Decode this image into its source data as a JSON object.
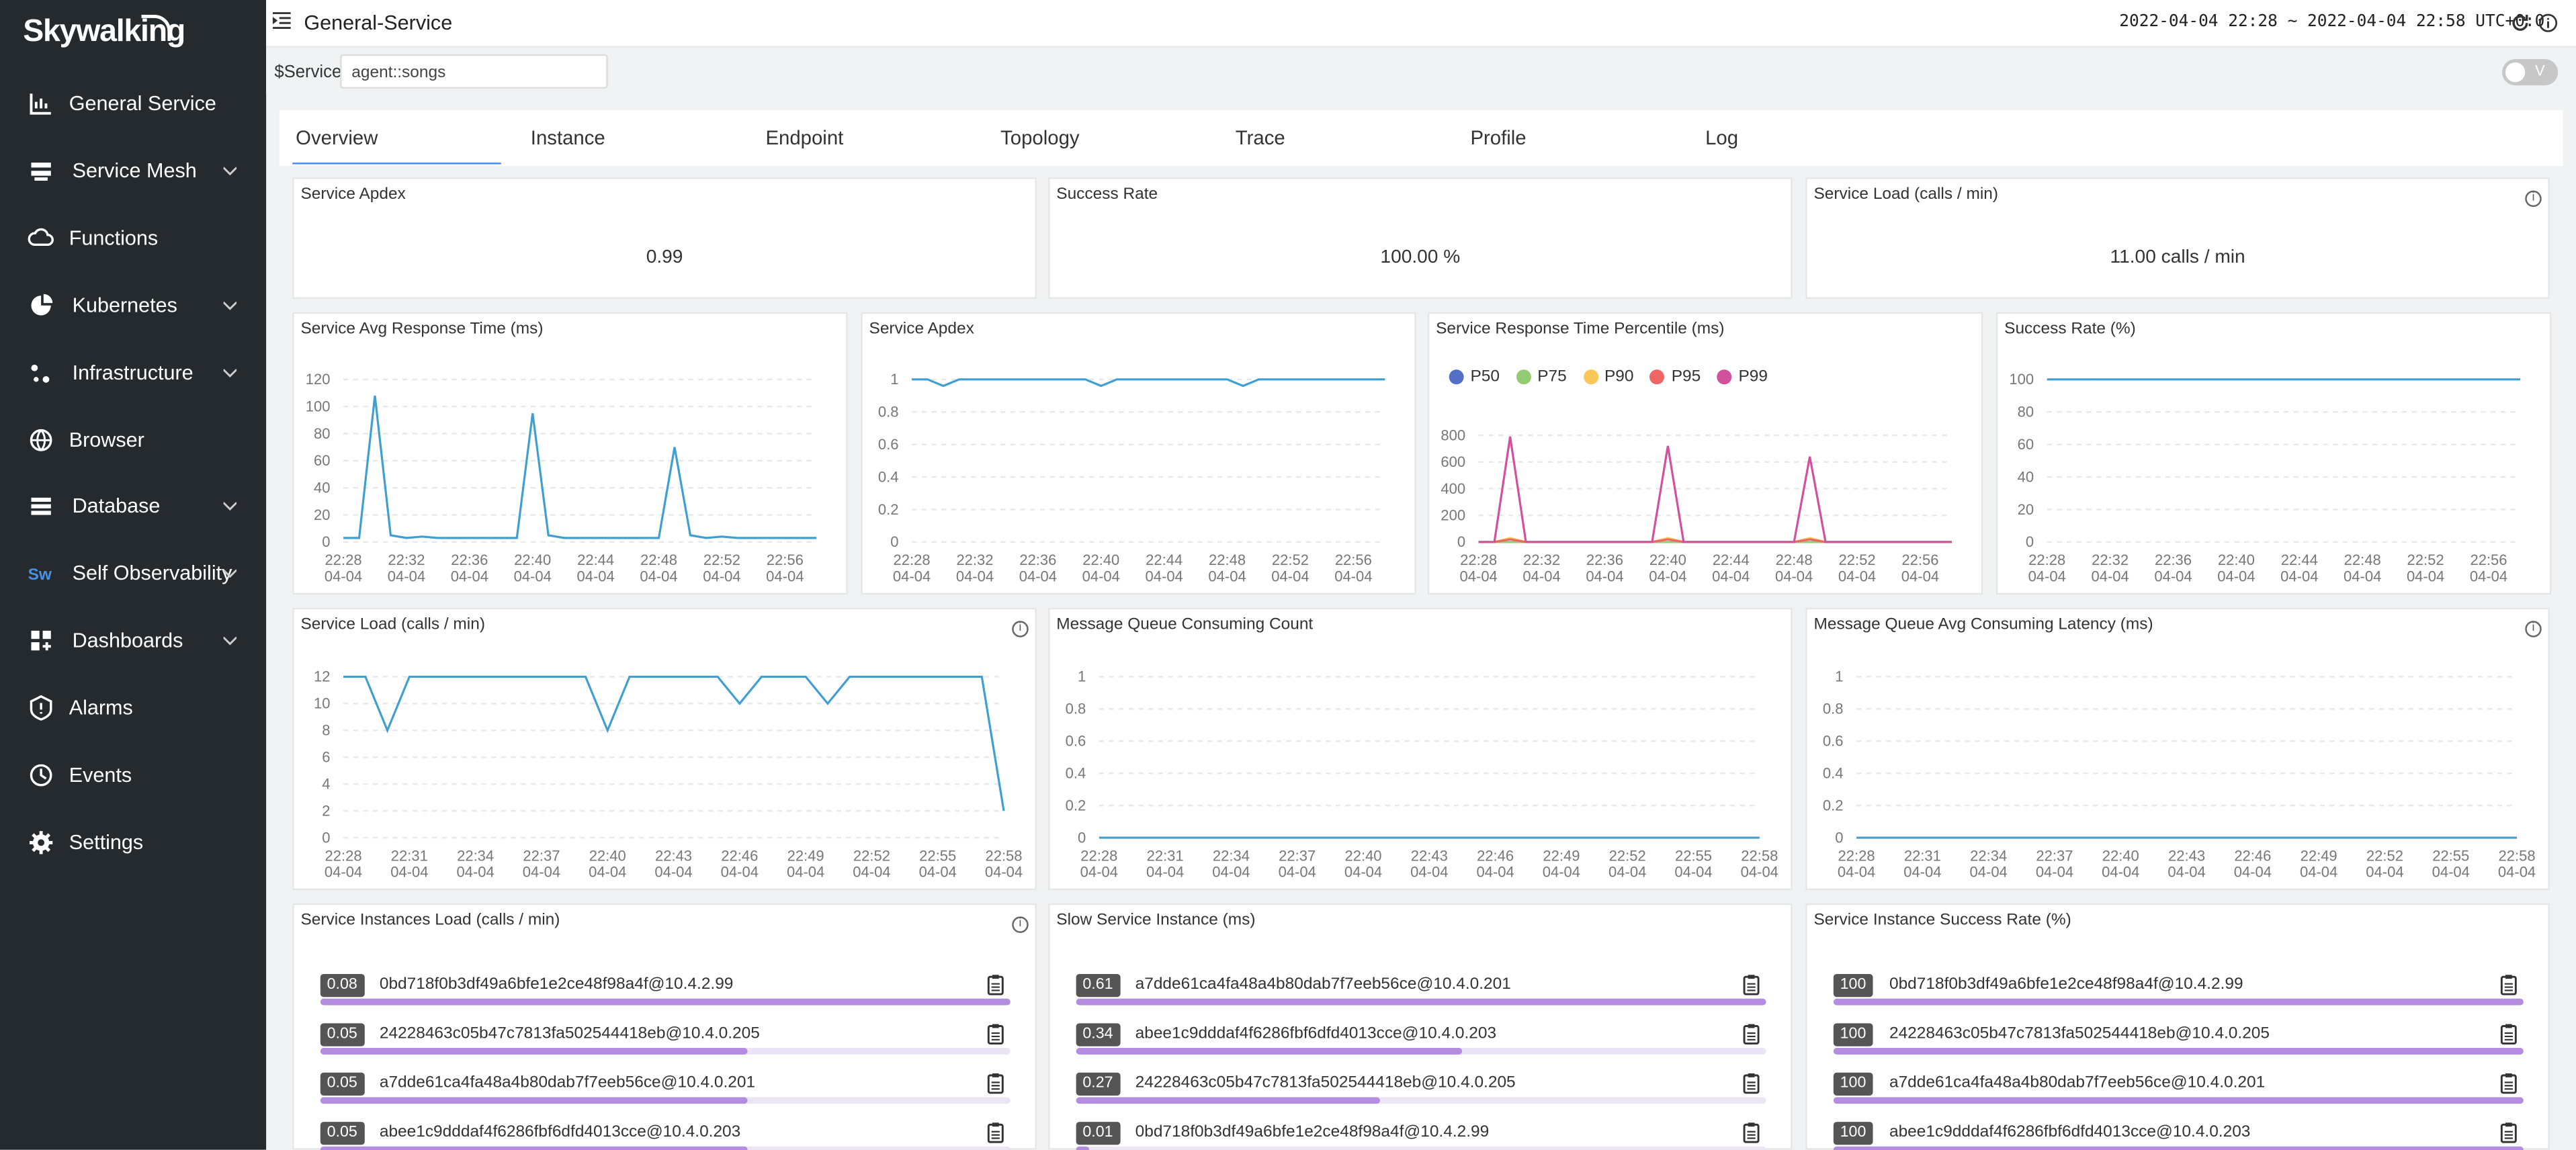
{
  "app": {
    "logo": "Skywalking"
  },
  "sidebar": {
    "items": [
      {
        "label": "General Service",
        "icon": "chart-icon",
        "chevron": false
      },
      {
        "label": "Service Mesh",
        "icon": "mesh-icon",
        "chevron": true
      },
      {
        "label": "Functions",
        "icon": "cloud-icon",
        "chevron": false
      },
      {
        "label": "Kubernetes",
        "icon": "pie-icon",
        "chevron": true
      },
      {
        "label": "Infrastructure",
        "icon": "nodes-icon",
        "chevron": true
      },
      {
        "label": "Browser",
        "icon": "globe-icon",
        "chevron": false
      },
      {
        "label": "Database",
        "icon": "database-icon",
        "chevron": true
      },
      {
        "label": "Self Observability",
        "icon": "sw-icon",
        "chevron": true
      },
      {
        "label": "Dashboards",
        "icon": "dashboard-icon",
        "chevron": true
      },
      {
        "label": "Alarms",
        "icon": "alarm-icon",
        "chevron": false
      },
      {
        "label": "Events",
        "icon": "events-icon",
        "chevron": false
      },
      {
        "label": "Settings",
        "icon": "gear-icon",
        "chevron": false
      }
    ]
  },
  "header": {
    "title": "General-Service",
    "time_range": "2022-04-04 22:28 ~ 2022-04-04 22:58",
    "timezone": "UTC+0:0"
  },
  "filter": {
    "label": "$Service",
    "value": "agent::songs",
    "toggle_label": "V"
  },
  "tabs": [
    "Overview",
    "Instance",
    "Endpoint",
    "Topology",
    "Trace",
    "Profile",
    "Log"
  ],
  "cards": [
    {
      "title": "Service Apdex",
      "value": "0.99"
    },
    {
      "title": "Success Rate",
      "value": "100.00 %"
    },
    {
      "title": "Service Load (calls / min)",
      "value": "11.00 calls / min"
    }
  ],
  "chart_data": [
    {
      "type": "line",
      "title": "Service Avg Response Time (ms)",
      "x": [
        "22:28",
        "22:29",
        "22:30",
        "22:31",
        "22:32",
        "22:33",
        "22:34",
        "22:35",
        "22:36",
        "22:37",
        "22:38",
        "22:39",
        "22:40",
        "22:41",
        "22:42",
        "22:43",
        "22:44",
        "22:45",
        "22:46",
        "22:47",
        "22:48",
        "22:49",
        "22:50",
        "22:51",
        "22:52",
        "22:53",
        "22:54",
        "22:55",
        "22:56",
        "22:57",
        "22:58"
      ],
      "x_date": "04-04",
      "series": [
        {
          "values": [
            3,
            3,
            108,
            5,
            3,
            4,
            3,
            3,
            3,
            3,
            3,
            3,
            95,
            5,
            3,
            3,
            3,
            3,
            3,
            3,
            3,
            70,
            5,
            3,
            4,
            3,
            3,
            3,
            3,
            3,
            3
          ]
        }
      ],
      "yticks": [
        0,
        20,
        40,
        60,
        80,
        100,
        120
      ],
      "ylim": [
        0,
        120
      ],
      "xticks": [
        "22:28",
        "22:32",
        "22:36",
        "22:40",
        "22:44",
        "22:48",
        "22:52",
        "22:56"
      ]
    },
    {
      "type": "line",
      "title": "Service Apdex",
      "x": [
        "22:28",
        "22:29",
        "22:30",
        "22:31",
        "22:32",
        "22:33",
        "22:34",
        "22:35",
        "22:36",
        "22:37",
        "22:38",
        "22:39",
        "22:40",
        "22:41",
        "22:42",
        "22:43",
        "22:44",
        "22:45",
        "22:46",
        "22:47",
        "22:48",
        "22:49",
        "22:50",
        "22:51",
        "22:52",
        "22:53",
        "22:54",
        "22:55",
        "22:56",
        "22:57",
        "22:58"
      ],
      "x_date": "04-04",
      "series": [
        {
          "values": [
            1,
            1,
            0.96,
            1,
            1,
            1,
            1,
            1,
            1,
            1,
            1,
            1,
            0.96,
            1,
            1,
            1,
            1,
            1,
            1,
            1,
            1,
            0.96,
            1,
            1,
            1,
            1,
            1,
            1,
            1,
            1,
            1
          ]
        }
      ],
      "yticks": [
        0,
        0.2,
        0.4,
        0.6,
        0.8,
        1
      ],
      "ylim": [
        0,
        1
      ],
      "xticks": [
        "22:28",
        "22:32",
        "22:36",
        "22:40",
        "22:44",
        "22:48",
        "22:52",
        "22:56"
      ]
    },
    {
      "type": "line",
      "title": "Service Response Time Percentile (ms)",
      "x": [
        "22:28",
        "22:29",
        "22:30",
        "22:31",
        "22:32",
        "22:33",
        "22:34",
        "22:35",
        "22:36",
        "22:37",
        "22:38",
        "22:39",
        "22:40",
        "22:41",
        "22:42",
        "22:43",
        "22:44",
        "22:45",
        "22:46",
        "22:47",
        "22:48",
        "22:49",
        "22:50",
        "22:51",
        "22:52",
        "22:53",
        "22:54",
        "22:55",
        "22:56",
        "22:57",
        "22:58"
      ],
      "x_date": "04-04",
      "legend": [
        "P50",
        "P75",
        "P90",
        "P95",
        "P99"
      ],
      "series": [
        {
          "name": "P50",
          "color": "#5470c6",
          "values": [
            0,
            0,
            0,
            0,
            0,
            0,
            0,
            0,
            0,
            0,
            0,
            0,
            0,
            0,
            0,
            0,
            0,
            0,
            0,
            0,
            0,
            0,
            0,
            0,
            0,
            0,
            0,
            0,
            0,
            0,
            0
          ]
        },
        {
          "name": "P75",
          "color": "#91cc75",
          "values": [
            0,
            0,
            0,
            0,
            0,
            0,
            0,
            0,
            0,
            0,
            0,
            0,
            0,
            0,
            0,
            0,
            0,
            0,
            0,
            0,
            0,
            0,
            0,
            0,
            0,
            0,
            0,
            0,
            0,
            0,
            0
          ]
        },
        {
          "name": "P90",
          "color": "#fac858",
          "values": [
            0,
            0,
            30,
            0,
            0,
            0,
            0,
            0,
            0,
            0,
            0,
            0,
            30,
            0,
            0,
            0,
            0,
            0,
            0,
            0,
            0,
            30,
            0,
            0,
            0,
            0,
            0,
            0,
            0,
            0,
            0
          ]
        },
        {
          "name": "P95",
          "color": "#ee6666",
          "values": [
            0,
            0,
            20,
            0,
            0,
            0,
            0,
            0,
            0,
            0,
            0,
            0,
            20,
            0,
            0,
            0,
            0,
            0,
            0,
            0,
            0,
            20,
            0,
            0,
            0,
            0,
            0,
            0,
            0,
            0,
            0
          ]
        },
        {
          "name": "P99",
          "color": "#d2509c",
          "values": [
            0,
            0,
            790,
            0,
            0,
            0,
            0,
            0,
            0,
            0,
            0,
            0,
            720,
            0,
            0,
            0,
            0,
            0,
            0,
            0,
            0,
            640,
            0,
            0,
            0,
            0,
            0,
            0,
            0,
            0,
            0
          ]
        }
      ],
      "yticks": [
        0,
        200,
        400,
        600,
        800
      ],
      "ylim": [
        0,
        800
      ],
      "xticks": [
        "22:28",
        "22:32",
        "22:36",
        "22:40",
        "22:44",
        "22:48",
        "22:52",
        "22:56"
      ]
    },
    {
      "type": "line",
      "title": "Success Rate (%)",
      "x": [
        "22:28",
        "22:29",
        "22:30",
        "22:31",
        "22:32",
        "22:33",
        "22:34",
        "22:35",
        "22:36",
        "22:37",
        "22:38",
        "22:39",
        "22:40",
        "22:41",
        "22:42",
        "22:43",
        "22:44",
        "22:45",
        "22:46",
        "22:47",
        "22:48",
        "22:49",
        "22:50",
        "22:51",
        "22:52",
        "22:53",
        "22:54",
        "22:55",
        "22:56",
        "22:57",
        "22:58"
      ],
      "x_date": "04-04",
      "series": [
        {
          "values": [
            100,
            100,
            100,
            100,
            100,
            100,
            100,
            100,
            100,
            100,
            100,
            100,
            100,
            100,
            100,
            100,
            100,
            100,
            100,
            100,
            100,
            100,
            100,
            100,
            100,
            100,
            100,
            100,
            100,
            100,
            100
          ]
        }
      ],
      "yticks": [
        0,
        20,
        40,
        60,
        80,
        100
      ],
      "ylim": [
        0,
        100
      ],
      "xticks": [
        "22:28",
        "22:32",
        "22:36",
        "22:40",
        "22:44",
        "22:48",
        "22:52",
        "22:56"
      ]
    },
    {
      "type": "line",
      "title": "Service Load (calls / min)",
      "x": [
        "22:28",
        "22:29",
        "22:30",
        "22:31",
        "22:32",
        "22:33",
        "22:34",
        "22:35",
        "22:36",
        "22:37",
        "22:38",
        "22:39",
        "22:40",
        "22:41",
        "22:42",
        "22:43",
        "22:44",
        "22:45",
        "22:46",
        "22:47",
        "22:48",
        "22:49",
        "22:50",
        "22:51",
        "22:52",
        "22:53",
        "22:54",
        "22:55",
        "22:56",
        "22:57",
        "22:58"
      ],
      "x_date": "04-04",
      "series": [
        {
          "values": [
            12,
            12,
            8,
            12,
            12,
            12,
            12,
            12,
            12,
            12,
            12,
            12,
            8,
            12,
            12,
            12,
            12,
            12,
            10,
            12,
            12,
            12,
            10,
            12,
            12,
            12,
            12,
            12,
            12,
            12,
            2
          ]
        }
      ],
      "yticks": [
        0,
        2,
        4,
        6,
        8,
        10,
        12
      ],
      "ylim": [
        0,
        12
      ],
      "xticks": [
        "22:28",
        "22:31",
        "22:34",
        "22:37",
        "22:40",
        "22:43",
        "22:46",
        "22:49",
        "22:52",
        "22:55",
        "22:58"
      ]
    },
    {
      "type": "line",
      "title": "Message Queue Consuming Count",
      "x": [
        "22:28",
        "22:29",
        "22:30",
        "22:31",
        "22:32",
        "22:33",
        "22:34",
        "22:35",
        "22:36",
        "22:37",
        "22:38",
        "22:39",
        "22:40",
        "22:41",
        "22:42",
        "22:43",
        "22:44",
        "22:45",
        "22:46",
        "22:47",
        "22:48",
        "22:49",
        "22:50",
        "22:51",
        "22:52",
        "22:53",
        "22:54",
        "22:55",
        "22:56",
        "22:57",
        "22:58"
      ],
      "x_date": "04-04",
      "series": [
        {
          "values": [
            0,
            0,
            0,
            0,
            0,
            0,
            0,
            0,
            0,
            0,
            0,
            0,
            0,
            0,
            0,
            0,
            0,
            0,
            0,
            0,
            0,
            0,
            0,
            0,
            0,
            0,
            0,
            0,
            0,
            0,
            0
          ]
        }
      ],
      "yticks": [
        0,
        0.2,
        0.4,
        0.6,
        0.8,
        1
      ],
      "ylim": [
        0,
        1
      ],
      "xticks": [
        "22:28",
        "22:31",
        "22:34",
        "22:37",
        "22:40",
        "22:43",
        "22:46",
        "22:49",
        "22:52",
        "22:55",
        "22:58"
      ]
    },
    {
      "type": "line",
      "title": "Message Queue Avg Consuming Latency (ms)",
      "x": [
        "22:28",
        "22:29",
        "22:30",
        "22:31",
        "22:32",
        "22:33",
        "22:34",
        "22:35",
        "22:36",
        "22:37",
        "22:38",
        "22:39",
        "22:40",
        "22:41",
        "22:42",
        "22:43",
        "22:44",
        "22:45",
        "22:46",
        "22:47",
        "22:48",
        "22:49",
        "22:50",
        "22:51",
        "22:52",
        "22:53",
        "22:54",
        "22:55",
        "22:56",
        "22:57",
        "22:58"
      ],
      "x_date": "04-04",
      "series": [
        {
          "values": [
            0,
            0,
            0,
            0,
            0,
            0,
            0,
            0,
            0,
            0,
            0,
            0,
            0,
            0,
            0,
            0,
            0,
            0,
            0,
            0,
            0,
            0,
            0,
            0,
            0,
            0,
            0,
            0,
            0,
            0,
            0
          ]
        }
      ],
      "yticks": [
        0,
        0.2,
        0.4,
        0.6,
        0.8,
        1
      ],
      "ylim": [
        0,
        1
      ],
      "xticks": [
        "22:28",
        "22:31",
        "22:34",
        "22:37",
        "22:40",
        "22:43",
        "22:46",
        "22:49",
        "22:52",
        "22:55",
        "22:58"
      ]
    }
  ],
  "instance_panels": [
    {
      "title": "Service Instances Load (calls / min)",
      "rows": [
        {
          "value": "0.08",
          "name": "0bd718f0b3df49a6bfe1e2ce48f98a4f@10.4.2.99",
          "fill": 1.0
        },
        {
          "value": "0.05",
          "name": "24228463c05b47c7813fa502544418eb@10.4.0.205",
          "fill": 0.62
        },
        {
          "value": "0.05",
          "name": "a7dde61ca4fa48a4b80dab7f7eeb56ce@10.4.0.201",
          "fill": 0.62
        },
        {
          "value": "0.05",
          "name": "abee1c9dddaf4f6286fbf6dfd4013cce@10.4.0.203",
          "fill": 0.62
        }
      ]
    },
    {
      "title": "Slow Service Instance (ms)",
      "rows": [
        {
          "value": "0.61",
          "name": "a7dde61ca4fa48a4b80dab7f7eeb56ce@10.4.0.201",
          "fill": 1.0
        },
        {
          "value": "0.34",
          "name": "abee1c9dddaf4f6286fbf6dfd4013cce@10.4.0.203",
          "fill": 0.56
        },
        {
          "value": "0.27",
          "name": "24228463c05b47c7813fa502544418eb@10.4.0.205",
          "fill": 0.44
        },
        {
          "value": "0.01",
          "name": "0bd718f0b3df49a6bfe1e2ce48f98a4f@10.4.2.99",
          "fill": 0.02
        }
      ]
    },
    {
      "title": "Service Instance Success Rate (%)",
      "rows": [
        {
          "value": "100",
          "name": "0bd718f0b3df49a6bfe1e2ce48f98a4f@10.4.2.99",
          "fill": 1.0
        },
        {
          "value": "100",
          "name": "24228463c05b47c7813fa502544418eb@10.4.0.205",
          "fill": 1.0
        },
        {
          "value": "100",
          "name": "a7dde61ca4fa48a4b80dab7f7eeb56ce@10.4.0.201",
          "fill": 1.0
        },
        {
          "value": "100",
          "name": "abee1c9dddaf4f6286fbf6dfd4013cce@10.4.0.203",
          "fill": 1.0
        }
      ]
    }
  ],
  "colors": {
    "sidebar": "#252a2f",
    "line": "#3f9fd1",
    "accent": "#448dfe",
    "bar": "#b48de0"
  }
}
